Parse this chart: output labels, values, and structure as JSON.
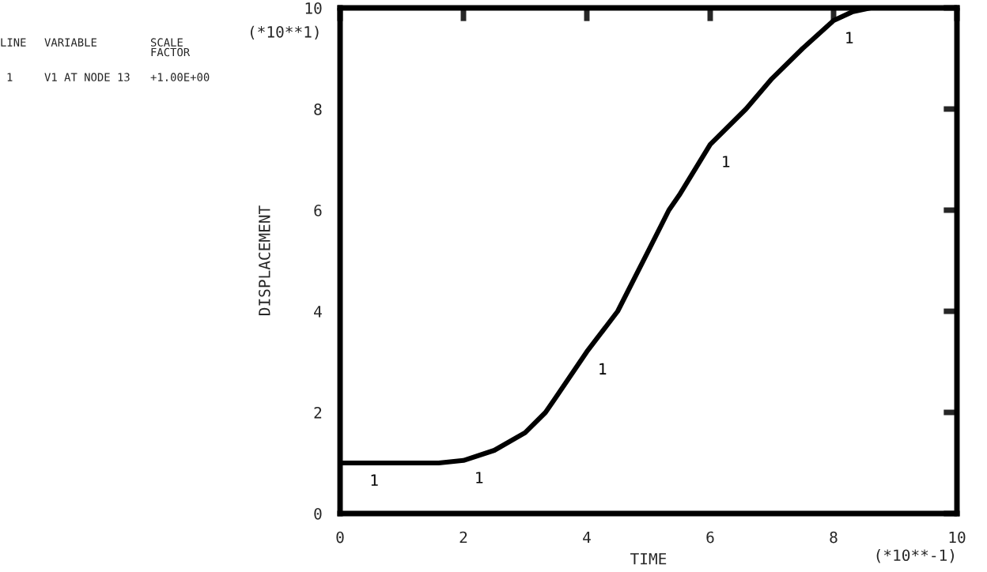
{
  "chart_data": {
    "type": "line",
    "xlabel": "TIME",
    "ylabel": "DISPLACEMENT",
    "x": [
      0,
      1.6,
      2,
      2.5,
      3,
      3.33,
      3.5,
      4,
      4.5,
      5,
      5.33,
      5.5,
      6,
      6.58,
      7,
      7.5,
      8,
      8.3,
      8.6
    ],
    "series": [
      {
        "name": "1",
        "color": "#000000",
        "values": [
          1,
          1,
          1.05,
          1.25,
          1.6,
          2,
          2.3,
          3.2,
          4,
          5.2,
          6,
          6.3,
          7.3,
          8,
          8.6,
          9.2,
          9.75,
          9.92,
          10
        ]
      }
    ],
    "xlim": [
      0,
      10
    ],
    "ylim": [
      0,
      10
    ],
    "xticks": [
      0,
      2,
      4,
      6,
      8,
      10
    ],
    "yticks": [
      0,
      2,
      4,
      6,
      8,
      10
    ],
    "grid": false,
    "marker": "none",
    "line_style": "solid",
    "annotations": [
      "(*10**1)",
      "(*10**-1)",
      "LINE",
      "VARIABLE",
      "SCALE\nFACTOR",
      "1",
      "V1 AT NODE 13",
      "+1.00E+00"
    ]
  }
}
